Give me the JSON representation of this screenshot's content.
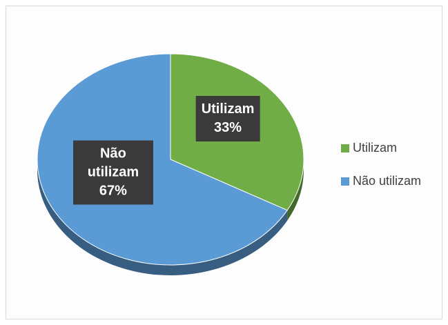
{
  "chart_data": {
    "type": "pie",
    "categories": [
      "Utilizam",
      "Não utilizam"
    ],
    "values": [
      33,
      67
    ],
    "value_labels": [
      "33%",
      "67%"
    ],
    "colors": [
      "#70ad47",
      "#5b9bd5"
    ],
    "legend": "right"
  }
}
